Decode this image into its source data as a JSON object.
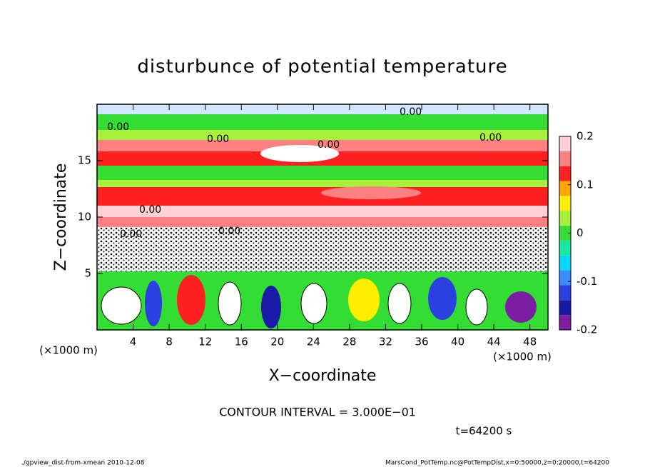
{
  "chart_data": {
    "type": "heatmap",
    "title": "disturbunce of potential temperature",
    "xlabel": "X−coordinate",
    "ylabel": "Z−coordinate",
    "xunit": "(×1000 m)",
    "yunit": "(×1000 m)",
    "xlim": [
      0,
      50
    ],
    "xticks": [
      4,
      8,
      12,
      16,
      20,
      24,
      28,
      32,
      36,
      40,
      44,
      48
    ],
    "ylim": [
      0,
      20
    ],
    "yticks": [
      5,
      10,
      15
    ],
    "colorbar": {
      "lim": [
        -0.2,
        0.2
      ],
      "ticks": [
        0.2,
        0.1,
        0,
        -0.1,
        -0.2
      ],
      "colors": [
        "#7b1fa2",
        "#1a1aa8",
        "#2a40e0",
        "#3a8cff",
        "#00d7ff",
        "#18e8a0",
        "#33dd33",
        "#a8f03c",
        "#ffee00",
        "#ffa500",
        "#ff2020",
        "#ff8080",
        "#ffd0d8"
      ]
    },
    "contour_labels": [
      "0.00",
      "0.00",
      "0.00",
      "0.00",
      "0.00",
      "0.00",
      "0.00",
      "0.00"
    ],
    "contour_interval": "CONTOUR INTERVAL = 3.000E−01",
    "time_label": "t=64200 s",
    "footer_left": "./gpview_dist-from-xmean   2010-12-08",
    "footer_right": "MarsCond_PotTemp.nc@PotTempDist,x=0:50000,z=0:20000,t=64200"
  }
}
